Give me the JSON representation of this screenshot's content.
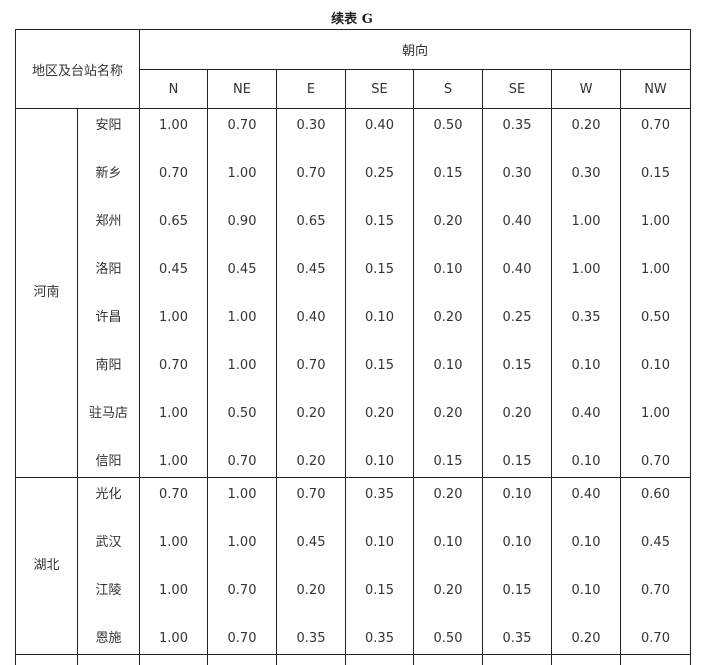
{
  "title": "续表 G",
  "header": {
    "region_station": "地区及台站名称",
    "orientation": "朝向",
    "directions": [
      "N",
      "NE",
      "E",
      "SE",
      "S",
      "SE",
      "W",
      "NW"
    ]
  },
  "groups": [
    {
      "province": "河南",
      "stations": [
        {
          "name": "安阳",
          "values": [
            "1.00",
            "0.70",
            "0.30",
            "0.40",
            "0.50",
            "0.35",
            "0.20",
            "0.70"
          ]
        },
        {
          "name": "新乡",
          "values": [
            "0.70",
            "1.00",
            "0.70",
            "0.25",
            "0.15",
            "0.30",
            "0.30",
            "0.15"
          ]
        },
        {
          "name": "郑州",
          "values": [
            "0.65",
            "0.90",
            "0.65",
            "0.15",
            "0.20",
            "0.40",
            "1.00",
            "1.00"
          ]
        },
        {
          "name": "洛阳",
          "values": [
            "0.45",
            "0.45",
            "0.45",
            "0.15",
            "0.10",
            "0.40",
            "1.00",
            "1.00"
          ]
        },
        {
          "name": "许昌",
          "values": [
            "1.00",
            "1.00",
            "0.40",
            "0.10",
            "0.20",
            "0.25",
            "0.35",
            "0.50"
          ]
        },
        {
          "name": "南阳",
          "values": [
            "0.70",
            "1.00",
            "0.70",
            "0.15",
            "0.10",
            "0.15",
            "0.10",
            "0.10"
          ]
        },
        {
          "name": "驻马店",
          "values": [
            "1.00",
            "0.50",
            "0.20",
            "0.20",
            "0.20",
            "0.20",
            "0.40",
            "1.00"
          ]
        },
        {
          "name": "信阳",
          "values": [
            "1.00",
            "0.70",
            "0.20",
            "0.10",
            "0.15",
            "0.15",
            "0.10",
            "0.70"
          ]
        }
      ]
    },
    {
      "province": "湖北",
      "stations": [
        {
          "name": "光化",
          "values": [
            "0.70",
            "1.00",
            "0.70",
            "0.35",
            "0.20",
            "0.10",
            "0.40",
            "0.60"
          ]
        },
        {
          "name": "武汉",
          "values": [
            "1.00",
            "1.00",
            "0.45",
            "0.10",
            "0.10",
            "0.10",
            "0.10",
            "0.45"
          ]
        },
        {
          "name": "江陵",
          "values": [
            "1.00",
            "0.70",
            "0.20",
            "0.15",
            "0.20",
            "0.15",
            "0.10",
            "0.70"
          ]
        },
        {
          "name": "恩施",
          "values": [
            "1.00",
            "0.70",
            "0.35",
            "0.35",
            "0.50",
            "0.35",
            "0.20",
            "0.70"
          ]
        }
      ]
    }
  ]
}
